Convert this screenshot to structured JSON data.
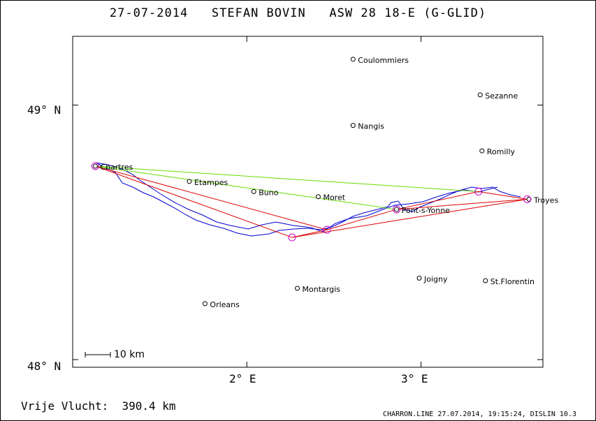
{
  "header": {
    "title": "27-07-2014   STEFAN BOVIN   ASW 28 18-E (G-GLID)"
  },
  "axes": {
    "lat_labels": [
      "49° N",
      "48° N"
    ],
    "lon_labels": [
      "2° E",
      "3° E"
    ],
    "lat_range": [
      47.97,
      49.27
    ],
    "lon_range": [
      1.0,
      3.7
    ]
  },
  "scale": {
    "label": "10 km"
  },
  "places": [
    {
      "name": "Coulommiers",
      "lon": 2.61,
      "lat": 49.18
    },
    {
      "name": "Sezanne",
      "lon": 3.34,
      "lat": 49.04
    },
    {
      "name": "Nangis",
      "lon": 2.61,
      "lat": 48.92
    },
    {
      "name": "Romilly",
      "lon": 3.35,
      "lat": 48.82
    },
    {
      "name": "Chartres",
      "lon": 1.13,
      "lat": 48.76
    },
    {
      "name": "Etampes",
      "lon": 1.67,
      "lat": 48.7
    },
    {
      "name": "Buno",
      "lon": 2.04,
      "lat": 48.66
    },
    {
      "name": "Moret",
      "lon": 2.41,
      "lat": 48.64
    },
    {
      "name": "Pont-s-Yonne",
      "lon": 2.86,
      "lat": 48.59
    },
    {
      "name": "Troyes",
      "lon": 3.62,
      "lat": 48.63
    },
    {
      "name": "Joigny",
      "lon": 2.99,
      "lat": 48.32
    },
    {
      "name": "St.Florentin",
      "lon": 3.37,
      "lat": 48.31
    },
    {
      "name": "Montargis",
      "lon": 2.29,
      "lat": 48.28
    },
    {
      "name": "Orleans",
      "lon": 1.76,
      "lat": 48.22
    }
  ],
  "task_points": [
    {
      "lon": 1.13,
      "lat": 48.76
    },
    {
      "lon": 2.26,
      "lat": 48.48
    },
    {
      "lon": 2.46,
      "lat": 48.51
    },
    {
      "lon": 2.86,
      "lat": 48.59
    },
    {
      "lon": 3.33,
      "lat": 48.66
    },
    {
      "lon": 3.61,
      "lat": 48.63
    }
  ],
  "task_colors": {
    "track": "#0000d0",
    "legs": "#dd0000",
    "closing": "#66dd00",
    "turnpoint": "#cc00cc"
  },
  "footer": {
    "distance": "Vrije Vlucht:  390.4 km",
    "credits": "CHARRON.LINE 27.07.2014, 19:15:24, DISLIN 10.3"
  }
}
